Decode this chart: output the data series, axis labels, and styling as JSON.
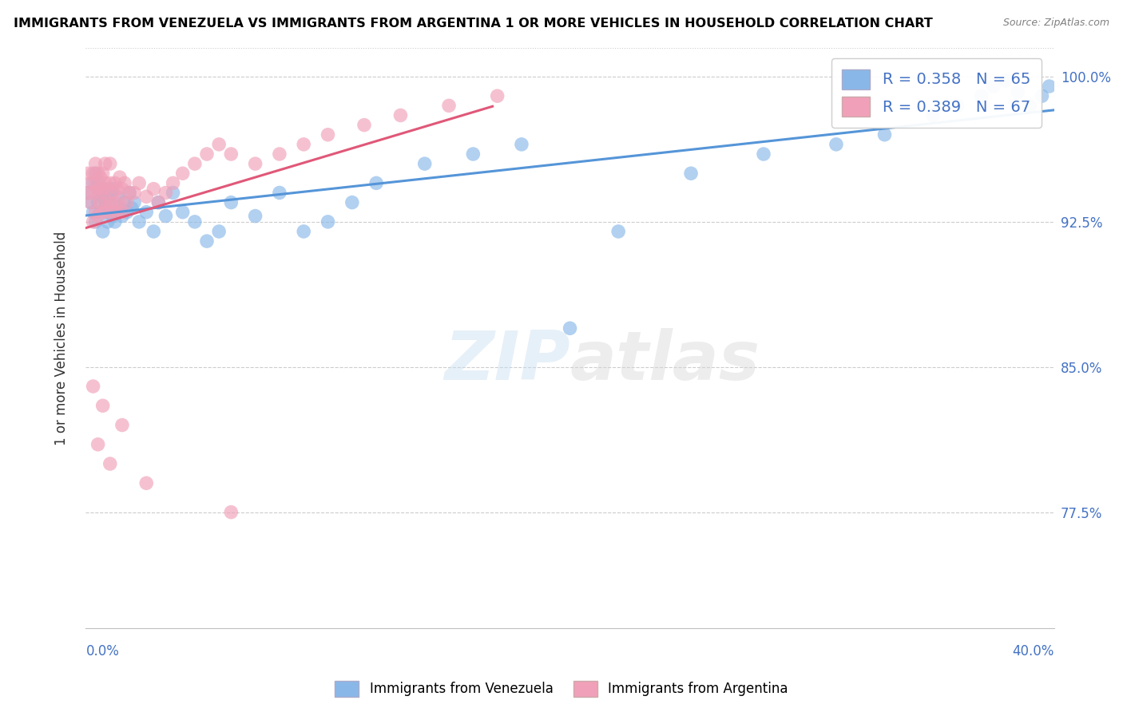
{
  "title": "IMMIGRANTS FROM VENEZUELA VS IMMIGRANTS FROM ARGENTINA 1 OR MORE VEHICLES IN HOUSEHOLD CORRELATION CHART",
  "source": "Source: ZipAtlas.com",
  "ylabel": "1 or more Vehicles in Household",
  "xmin": 0.0,
  "xmax": 0.4,
  "ymin": 0.715,
  "ymax": 1.015,
  "ytick_vals": [
    0.775,
    0.85,
    0.925,
    1.0
  ],
  "ytick_labels": [
    "77.5%",
    "85.0%",
    "92.5%",
    "100.0%"
  ],
  "r_venezuela": 0.358,
  "n_venezuela": 65,
  "r_argentina": 0.389,
  "n_argentina": 67,
  "color_venezuela": "#89b8e8",
  "color_argentina": "#f0a0b8",
  "line_color_venezuela": "#5595d8",
  "line_color_argentina": "#e05878",
  "venezuela_x": [
    0.001,
    0.002,
    0.003,
    0.003,
    0.004,
    0.004,
    0.005,
    0.005,
    0.006,
    0.006,
    0.007,
    0.007,
    0.008,
    0.008,
    0.009,
    0.009,
    0.01,
    0.01,
    0.011,
    0.011,
    0.012,
    0.012,
    0.013,
    0.014,
    0.015,
    0.016,
    0.017,
    0.018,
    0.019,
    0.02,
    0.022,
    0.025,
    0.028,
    0.03,
    0.033,
    0.036,
    0.04,
    0.045,
    0.05,
    0.055,
    0.06,
    0.07,
    0.08,
    0.09,
    0.1,
    0.11,
    0.12,
    0.14,
    0.16,
    0.18,
    0.2,
    0.22,
    0.25,
    0.28,
    0.31,
    0.33,
    0.35,
    0.36,
    0.37,
    0.375,
    0.38,
    0.385,
    0.39,
    0.395,
    0.398
  ],
  "venezuela_y": [
    0.94,
    0.935,
    0.93,
    0.945,
    0.925,
    0.95,
    0.935,
    0.945,
    0.93,
    0.94,
    0.92,
    0.938,
    0.935,
    0.942,
    0.93,
    0.925,
    0.94,
    0.935,
    0.928,
    0.942,
    0.93,
    0.925,
    0.938,
    0.932,
    0.928,
    0.935,
    0.93,
    0.94,
    0.932,
    0.935,
    0.925,
    0.93,
    0.92,
    0.935,
    0.928,
    0.94,
    0.93,
    0.925,
    0.915,
    0.92,
    0.935,
    0.928,
    0.94,
    0.92,
    0.925,
    0.935,
    0.945,
    0.955,
    0.96,
    0.965,
    0.87,
    0.92,
    0.95,
    0.96,
    0.965,
    0.97,
    0.98,
    0.985,
    0.99,
    0.995,
    0.998,
    0.992,
    0.985,
    0.99,
    0.995
  ],
  "argentina_x": [
    0.001,
    0.001,
    0.002,
    0.002,
    0.003,
    0.003,
    0.003,
    0.004,
    0.004,
    0.004,
    0.005,
    0.005,
    0.005,
    0.006,
    0.006,
    0.006,
    0.007,
    0.007,
    0.007,
    0.008,
    0.008,
    0.008,
    0.009,
    0.009,
    0.01,
    0.01,
    0.01,
    0.011,
    0.011,
    0.012,
    0.012,
    0.013,
    0.013,
    0.014,
    0.014,
    0.015,
    0.015,
    0.016,
    0.017,
    0.018,
    0.02,
    0.022,
    0.025,
    0.028,
    0.03,
    0.033,
    0.036,
    0.04,
    0.045,
    0.05,
    0.055,
    0.06,
    0.07,
    0.08,
    0.09,
    0.1,
    0.115,
    0.13,
    0.15,
    0.17,
    0.003,
    0.005,
    0.007,
    0.01,
    0.015,
    0.025,
    0.06
  ],
  "argentina_y": [
    0.94,
    0.95,
    0.935,
    0.945,
    0.925,
    0.94,
    0.95,
    0.93,
    0.945,
    0.955,
    0.928,
    0.942,
    0.95,
    0.935,
    0.94,
    0.948,
    0.93,
    0.942,
    0.95,
    0.935,
    0.945,
    0.955,
    0.93,
    0.942,
    0.935,
    0.945,
    0.955,
    0.93,
    0.94,
    0.935,
    0.945,
    0.93,
    0.942,
    0.935,
    0.948,
    0.93,
    0.942,
    0.945,
    0.935,
    0.94,
    0.94,
    0.945,
    0.938,
    0.942,
    0.935,
    0.94,
    0.945,
    0.95,
    0.955,
    0.96,
    0.965,
    0.96,
    0.955,
    0.96,
    0.965,
    0.97,
    0.975,
    0.98,
    0.985,
    0.99,
    0.84,
    0.81,
    0.83,
    0.8,
    0.82,
    0.79,
    0.775
  ]
}
